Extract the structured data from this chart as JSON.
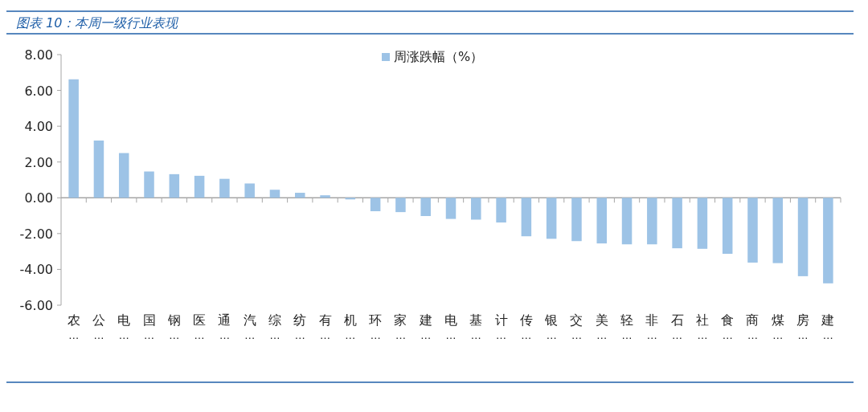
{
  "chart_data": {
    "type": "bar",
    "title": "图表 10：本周一级行业表现",
    "categories": [
      "农…",
      "公…",
      "电…",
      "国…",
      "钢…",
      "医…",
      "通…",
      "汽…",
      "综…",
      "纺…",
      "有…",
      "机…",
      "环…",
      "家…",
      "建…",
      "电…",
      "基…",
      "计…",
      "传…",
      "银…",
      "交…",
      "美…",
      "轻…",
      "非…",
      "石…",
      "社…",
      "食…",
      "商…",
      "煤…",
      "房…",
      "建…"
    ],
    "series": [
      {
        "name": "周涨跌幅（%）",
        "color": "#9dc3e6",
        "values": [
          6.62,
          3.2,
          2.5,
          1.47,
          1.32,
          1.23,
          1.06,
          0.8,
          0.45,
          0.28,
          0.14,
          -0.09,
          -0.75,
          -0.8,
          -1.02,
          -1.18,
          -1.22,
          -1.38,
          -2.15,
          -2.29,
          -2.42,
          -2.55,
          -2.6,
          -2.6,
          -2.82,
          -2.85,
          -3.13,
          -3.62,
          -3.65,
          -4.38,
          -4.78
        ]
      }
    ],
    "ylim": [
      -6,
      8
    ],
    "yticks": [
      {
        "value": -6,
        "label": "-6.00"
      },
      {
        "value": -4,
        "label": "-4.00"
      },
      {
        "value": -2,
        "label": "-2.00"
      },
      {
        "value": 0,
        "label": "0.00"
      },
      {
        "value": 2,
        "label": "2.00"
      },
      {
        "value": 4,
        "label": "4.00"
      },
      {
        "value": 6,
        "label": "6.00"
      },
      {
        "value": 8,
        "label": "8.00"
      }
    ],
    "legend": "top"
  }
}
